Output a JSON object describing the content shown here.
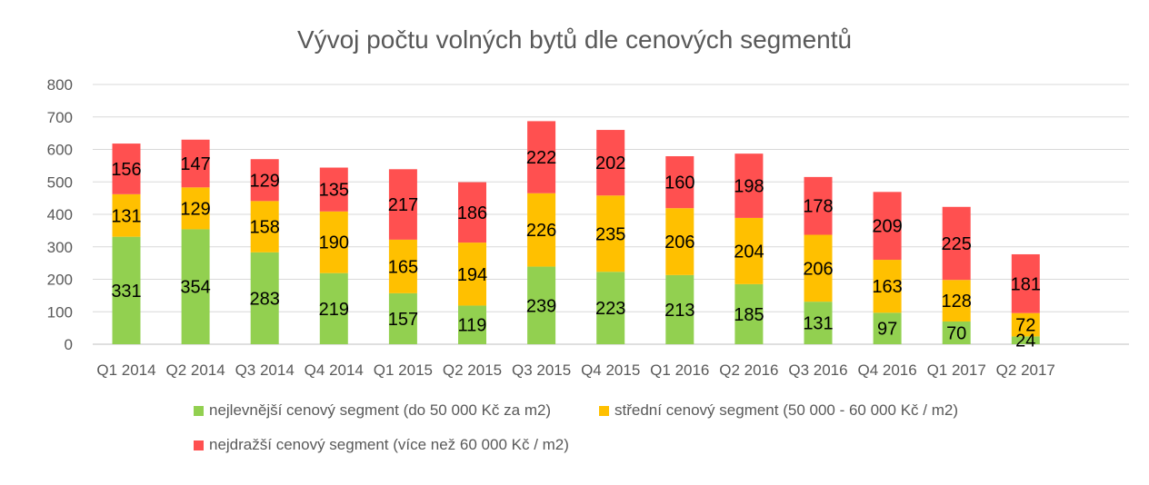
{
  "chart_data": {
    "type": "bar",
    "stacked": true,
    "title": "Vývoj počtu volných bytů dle cenových segmentů",
    "categories": [
      "Q1 2014",
      "Q2 2014",
      "Q3 2014",
      "Q4 2014",
      "Q1 2015",
      "Q2 2015",
      "Q3 2015",
      "Q4 2015",
      "Q1 2016",
      "Q2 2016",
      "Q3 2016",
      "Q4 2016",
      "Q1 2017",
      "Q2 2017"
    ],
    "ylim": [
      0,
      800
    ],
    "yticks": [
      "0",
      "100",
      "200",
      "300",
      "400",
      "500",
      "600",
      "700",
      "800"
    ],
    "grid": true,
    "legend_position": "bottom",
    "series": [
      {
        "name": "nejlevnější cenový segment (do 50 000 Kč za m2)",
        "color": "#92d050",
        "values": [
          331,
          354,
          283,
          219,
          157,
          119,
          239,
          223,
          213,
          185,
          131,
          97,
          70,
          24
        ]
      },
      {
        "name": "střední cenový segment (50 000 - 60 000 Kč / m2)",
        "color": "#ffc000",
        "values": [
          131,
          129,
          158,
          190,
          165,
          194,
          226,
          235,
          206,
          204,
          206,
          163,
          128,
          72
        ]
      },
      {
        "name": "nejdražší cenový segment (více než 60 000 Kč / m2)",
        "color": "#ff5050",
        "values": [
          156,
          147,
          129,
          135,
          217,
          186,
          222,
          202,
          160,
          198,
          178,
          209,
          225,
          181
        ]
      }
    ]
  }
}
